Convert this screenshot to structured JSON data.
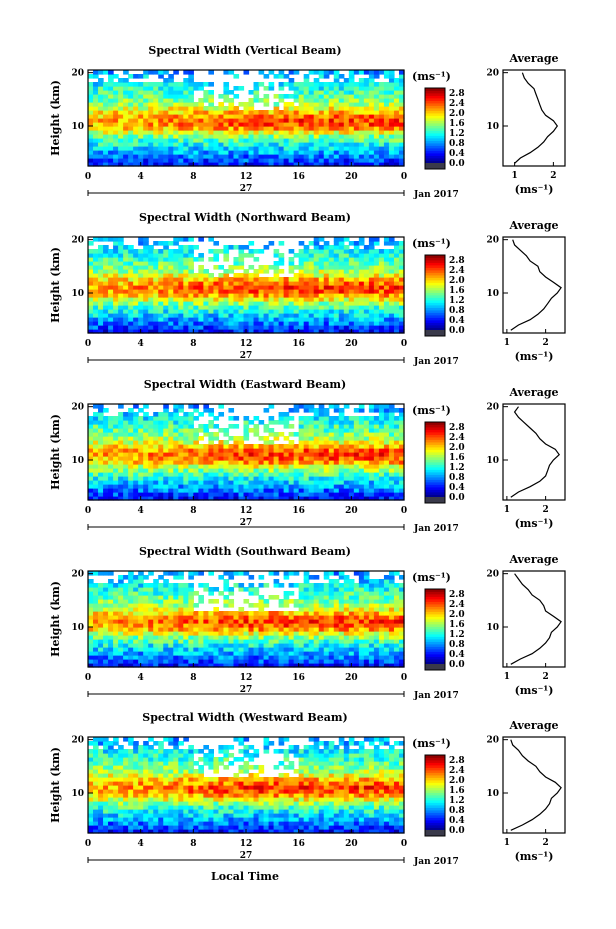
{
  "figure": {
    "ylabel": "Height (km)",
    "xlabel": "Local Time",
    "x_ticks": [
      "0",
      "4",
      "8",
      "12",
      "16",
      "20",
      "0"
    ],
    "date_label": "27",
    "date_right": "Jan 2017",
    "colorbar_unit": "(ms⁻¹)",
    "colorbar_ticks": [
      "2.8",
      "2.4",
      "2.0",
      "1.6",
      "1.2",
      "0.8",
      "0.4",
      "0.0"
    ],
    "y_ticks": [
      "20",
      "10"
    ],
    "avg_title": "Average",
    "avg_unit": "(ms⁻¹)"
  },
  "chart_data": [
    {
      "type": "heatmap",
      "title": "Spectral Width (Vertical Beam)",
      "ylabel": "Height (km)",
      "x_ticks": [
        "0",
        "4",
        "8",
        "12",
        "16",
        "20",
        "0"
      ],
      "y_range": [
        2.5,
        20.5
      ],
      "colorbar_range": [
        0.0,
        3.0
      ],
      "average_profile": {
        "xlim": [
          0.7,
          2.3
        ],
        "x_ticks": [
          "1",
          "2"
        ],
        "y_ticks": [
          "20",
          "10"
        ],
        "height_km": [
          3,
          4,
          5,
          6,
          7,
          8,
          9,
          10,
          11,
          12,
          13,
          14,
          15,
          16,
          17,
          18,
          19,
          20
        ],
        "width": [
          1.0,
          1.15,
          1.4,
          1.6,
          1.75,
          1.85,
          2.0,
          2.1,
          2.0,
          1.8,
          1.7,
          1.65,
          1.6,
          1.55,
          1.5,
          1.35,
          1.25,
          1.2
        ]
      }
    },
    {
      "type": "heatmap",
      "title": "Spectral Width (Northward Beam)",
      "ylabel": "Height (km)",
      "x_ticks": [
        "0",
        "4",
        "8",
        "12",
        "16",
        "20",
        "0"
      ],
      "y_range": [
        2.5,
        20.5
      ],
      "colorbar_range": [
        0.0,
        3.0
      ],
      "average_profile": {
        "xlim": [
          0.9,
          2.5
        ],
        "x_ticks": [
          "1",
          "2"
        ],
        "y_ticks": [
          "20",
          "10"
        ],
        "height_km": [
          3,
          4,
          5,
          6,
          7,
          8,
          9,
          10,
          11,
          12,
          13,
          14,
          15,
          16,
          17,
          18,
          19,
          20
        ],
        "width": [
          1.1,
          1.3,
          1.6,
          1.8,
          1.95,
          2.05,
          2.15,
          2.3,
          2.4,
          2.2,
          2.0,
          1.85,
          1.8,
          1.6,
          1.5,
          1.35,
          1.2,
          1.15
        ]
      }
    },
    {
      "type": "heatmap",
      "title": "Spectral Width (Eastward Beam)",
      "ylabel": "Height (km)",
      "x_ticks": [
        "0",
        "4",
        "8",
        "12",
        "16",
        "20",
        "0"
      ],
      "y_range": [
        2.5,
        20.5
      ],
      "colorbar_range": [
        0.0,
        3.0
      ],
      "average_profile": {
        "xlim": [
          0.9,
          2.5
        ],
        "x_ticks": [
          "1",
          "2"
        ],
        "y_ticks": [
          "20",
          "10"
        ],
        "height_km": [
          3,
          4,
          5,
          6,
          7,
          8,
          9,
          10,
          11,
          12,
          13,
          14,
          15,
          16,
          17,
          18,
          19,
          20
        ],
        "width": [
          1.1,
          1.3,
          1.6,
          1.85,
          2.0,
          2.05,
          2.1,
          2.2,
          2.35,
          2.25,
          2.0,
          1.85,
          1.75,
          1.6,
          1.45,
          1.3,
          1.2,
          1.3
        ]
      }
    },
    {
      "type": "heatmap",
      "title": "Spectral Width (Southward Beam)",
      "ylabel": "Height (km)",
      "x_ticks": [
        "0",
        "4",
        "8",
        "12",
        "16",
        "20",
        "0"
      ],
      "y_range": [
        2.5,
        20.5
      ],
      "colorbar_range": [
        0.0,
        3.0
      ],
      "average_profile": {
        "xlim": [
          0.9,
          2.5
        ],
        "x_ticks": [
          "1",
          "2"
        ],
        "y_ticks": [
          "20",
          "10"
        ],
        "height_km": [
          3,
          4,
          5,
          6,
          7,
          8,
          9,
          10,
          11,
          12,
          13,
          14,
          15,
          16,
          17,
          18,
          19,
          20
        ],
        "width": [
          1.1,
          1.35,
          1.65,
          1.85,
          2.0,
          2.1,
          2.15,
          2.3,
          2.4,
          2.2,
          2.0,
          1.95,
          1.85,
          1.65,
          1.55,
          1.4,
          1.3,
          1.2
        ]
      }
    },
    {
      "type": "heatmap",
      "title": "Spectral Width (Westward Beam)",
      "ylabel": "Height (km)",
      "x_ticks": [
        "0",
        "4",
        "8",
        "12",
        "16",
        "20",
        "0"
      ],
      "y_range": [
        2.5,
        20.5
      ],
      "colorbar_range": [
        0.0,
        3.0
      ],
      "average_profile": {
        "xlim": [
          0.9,
          2.5
        ],
        "x_ticks": [
          "1",
          "2"
        ],
        "y_ticks": [
          "20",
          "10"
        ],
        "height_km": [
          3,
          4,
          5,
          6,
          7,
          8,
          9,
          10,
          11,
          12,
          13,
          14,
          15,
          16,
          17,
          18,
          19,
          20
        ],
        "width": [
          1.1,
          1.4,
          1.65,
          1.85,
          2.0,
          2.1,
          2.15,
          2.3,
          2.4,
          2.25,
          2.0,
          1.85,
          1.75,
          1.55,
          1.4,
          1.3,
          1.15,
          1.1
        ]
      }
    }
  ]
}
